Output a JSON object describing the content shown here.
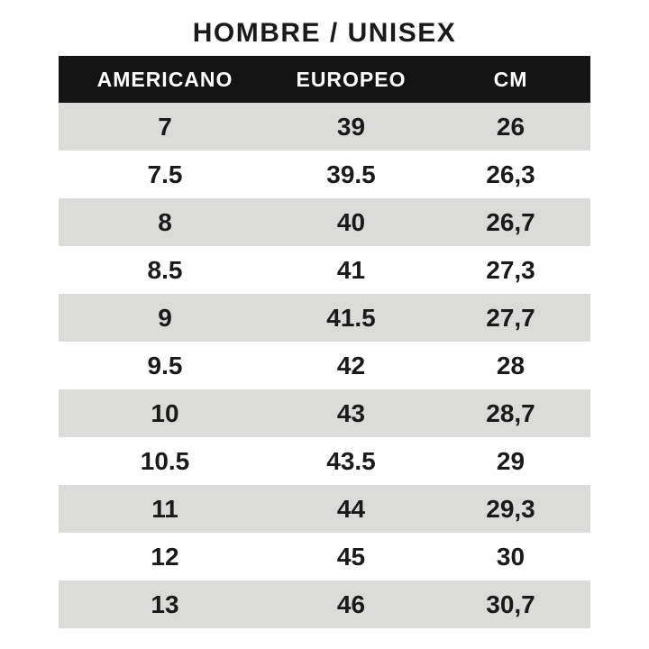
{
  "title": "HOMBRE / UNISEX",
  "chart_data": {
    "type": "table",
    "title": "HOMBRE / UNISEX",
    "columns": [
      "AMERICANO",
      "EUROPEO",
      "CM"
    ],
    "rows": [
      [
        "7",
        "39",
        "26"
      ],
      [
        "7.5",
        "39.5",
        "26,3"
      ],
      [
        "8",
        "40",
        "26,7"
      ],
      [
        "8.5",
        "41",
        "27,3"
      ],
      [
        "9",
        "41.5",
        "27,7"
      ],
      [
        "9.5",
        "42",
        "28"
      ],
      [
        "10",
        "43",
        "28,7"
      ],
      [
        "10.5",
        "43.5",
        "29"
      ],
      [
        "11",
        "44",
        "29,3"
      ],
      [
        "12",
        "45",
        "30"
      ],
      [
        "13",
        "46",
        "30,7"
      ]
    ],
    "layout": {
      "striped": true,
      "first_row_shaded": true,
      "header_style": "inverted"
    }
  },
  "colors": {
    "page_bg": "#ffffff",
    "header_bg": "#141414",
    "header_text": "#ffffff",
    "row_bg": "#ffffff",
    "row_alt_bg": "#dbdbd9",
    "text": "#1a1a1a"
  }
}
